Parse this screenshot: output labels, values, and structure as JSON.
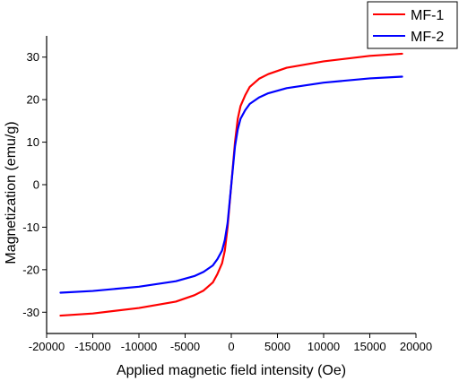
{
  "chart_data": {
    "type": "line",
    "xlabel": "Applied magnetic field intensity (Oe)",
    "ylabel": "Magnetization (emu/g)",
    "xlim": [
      -20000,
      20000
    ],
    "ylim": [
      -35,
      35
    ],
    "xticks": [
      -20000,
      -15000,
      -10000,
      -5000,
      0,
      5000,
      10000,
      15000,
      20000
    ],
    "yticks": [
      -30,
      -20,
      -10,
      0,
      10,
      20,
      30
    ],
    "legend_position": "top-right",
    "grid": false,
    "series": [
      {
        "name": "MF-1",
        "color": "#ff0000",
        "x": [
          -18500,
          -15000,
          -10000,
          -6000,
          -4000,
          -3000,
          -2000,
          -1500,
          -1000,
          -700,
          -400,
          -200,
          0,
          200,
          400,
          700,
          1000,
          1500,
          2000,
          3000,
          4000,
          6000,
          10000,
          15000,
          18500
        ],
        "y": [
          -30.8,
          -30.3,
          -29.0,
          -27.5,
          -26.0,
          -24.9,
          -23.0,
          -21.0,
          -18.5,
          -15.5,
          -10.0,
          -5.0,
          0,
          5.0,
          10.0,
          15.5,
          18.5,
          21.0,
          23.0,
          24.9,
          26.0,
          27.5,
          29.0,
          30.3,
          30.8
        ]
      },
      {
        "name": "MF-2",
        "color": "#0000ff",
        "x": [
          -18500,
          -15000,
          -10000,
          -6000,
          -4000,
          -3000,
          -2000,
          -1500,
          -1000,
          -700,
          -400,
          -200,
          0,
          200,
          400,
          700,
          1000,
          1500,
          2000,
          3000,
          4000,
          6000,
          10000,
          15000,
          18500
        ],
        "y": [
          -25.4,
          -25.0,
          -24.0,
          -22.7,
          -21.5,
          -20.5,
          -19.0,
          -17.5,
          -15.5,
          -13.0,
          -9.0,
          -4.5,
          0,
          4.5,
          9.0,
          13.0,
          15.5,
          17.5,
          19.0,
          20.5,
          21.5,
          22.7,
          24.0,
          25.0,
          25.4
        ]
      }
    ]
  }
}
